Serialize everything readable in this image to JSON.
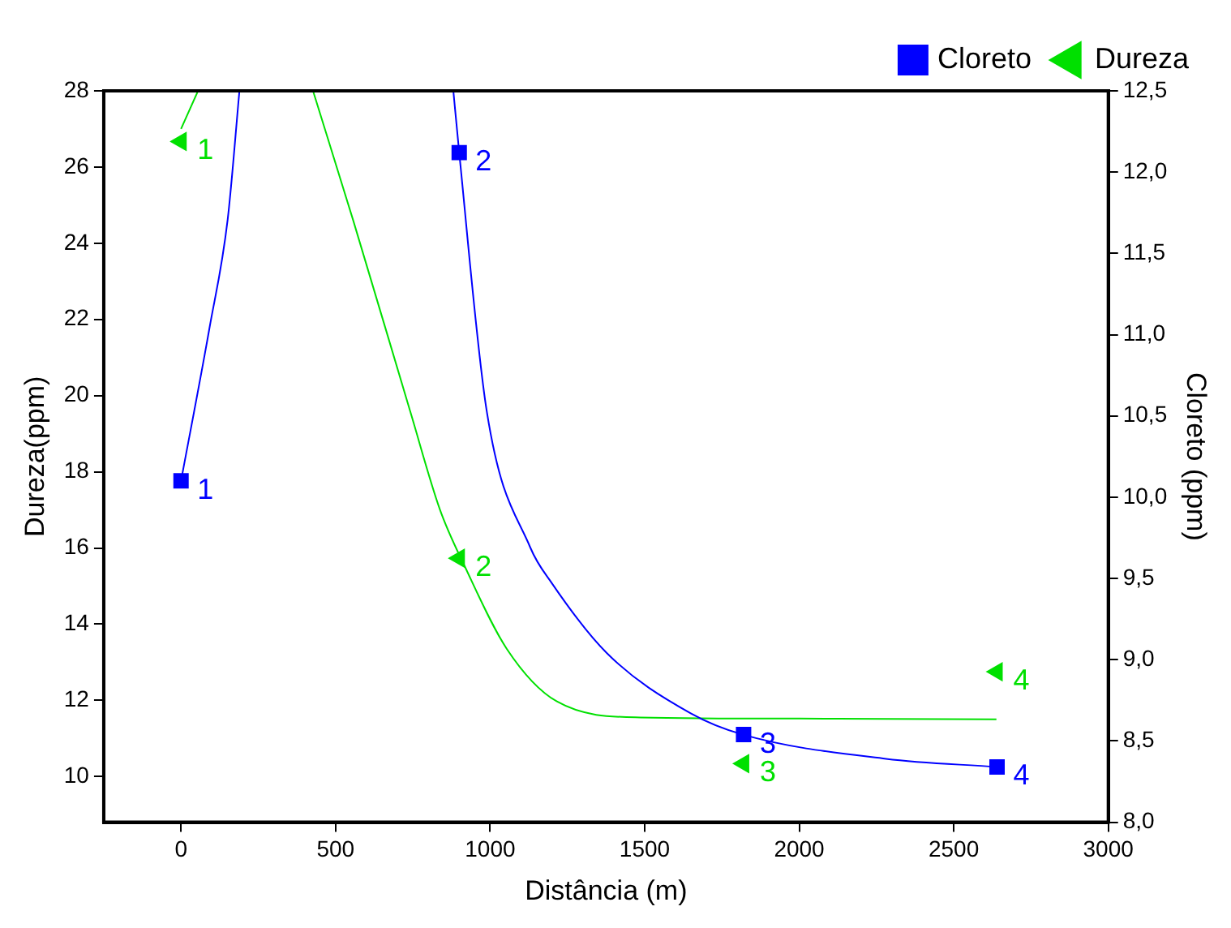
{
  "chart_data": {
    "type": "scatter",
    "xlabel": "Distância (m)",
    "ylabel": "Dureza(ppm)",
    "y2label": "Cloreto (ppm)",
    "xlim": [
      -250,
      3000
    ],
    "xticks": [
      0,
      500,
      1000,
      1500,
      2000,
      2500,
      3000
    ],
    "ylim": [
      8.8,
      28
    ],
    "yticks": [
      10,
      12,
      14,
      16,
      18,
      20,
      22,
      24,
      26,
      28
    ],
    "y2lim": [
      8.0,
      12.5
    ],
    "y2ticks": [
      {
        "value": 8.0,
        "label": "8,0"
      },
      {
        "value": 8.5,
        "label": "8,5"
      },
      {
        "value": 9.0,
        "label": "9,0"
      },
      {
        "value": 9.5,
        "label": "9,5"
      },
      {
        "value": 10.0,
        "label": "10,0"
      },
      {
        "value": 10.5,
        "label": "10,5"
      },
      {
        "value": 11.0,
        "label": "11,0"
      },
      {
        "value": 11.5,
        "label": "11,5"
      },
      {
        "value": 12.0,
        "label": "12,0"
      },
      {
        "value": 12.5,
        "label": "12,5"
      }
    ],
    "grid": false,
    "legend": "top right",
    "annotations": [
      {
        "text": "1",
        "x": 0,
        "y": 17.76
      },
      {
        "text": "2",
        "x": 900,
        "y": 26.38
      },
      {
        "text": "3",
        "x": 1820,
        "y": 11.1
      },
      {
        "text": "4",
        "x": 2640,
        "y": 10.25
      },
      {
        "text": "1",
        "x": 0,
        "y": 26.67
      },
      {
        "text": "2",
        "x": 900,
        "y": 15.73
      },
      {
        "text": "3",
        "x": 1820,
        "y": 10.34
      },
      {
        "text": "4",
        "x": 2640,
        "y": 12.75
      }
    ],
    "series": [
      {
        "name": "Cloreto",
        "axis": "y2",
        "marker": "square",
        "color": "#0000ff",
        "x": [
          0,
          900,
          1820,
          2640
        ],
        "values": [
          10.1,
          12.12,
          8.54,
          8.34
        ]
      },
      {
        "name": "Dureza",
        "marker": "triangle",
        "color": "#00e000",
        "x": [
          0,
          900,
          1820,
          2640
        ],
        "values": [
          26.67,
          15.73,
          10.34,
          12.75
        ]
      },
      {
        "type": "line",
        "axis": "y2",
        "marker": "none",
        "color": "#0000ff",
        "x": [
          0,
          92,
          151,
          189,
          500,
          881,
          900,
          989,
          1130,
          1200,
          1378,
          1649,
          1816,
          2281,
          2638
        ],
        "values": [
          10.1,
          11.04,
          11.71,
          12.5,
          null,
          12.5,
          12.12,
          10.53,
          9.69,
          9.47,
          9.04,
          8.67,
          8.54,
          8.39,
          8.34
        ]
      },
      {
        "type": "line",
        "marker": "none",
        "color": "#00e000",
        "x": [
          0,
          55,
          250,
          427,
          557,
          741,
          838,
          919,
          1054,
          1216,
          1486,
          2000,
          2638
        ],
        "values": [
          27.0,
          28,
          null,
          28,
          24.6,
          19.6,
          17.0,
          15.5,
          13.35,
          11.97,
          11.55,
          11.52,
          11.5
        ]
      }
    ]
  }
}
